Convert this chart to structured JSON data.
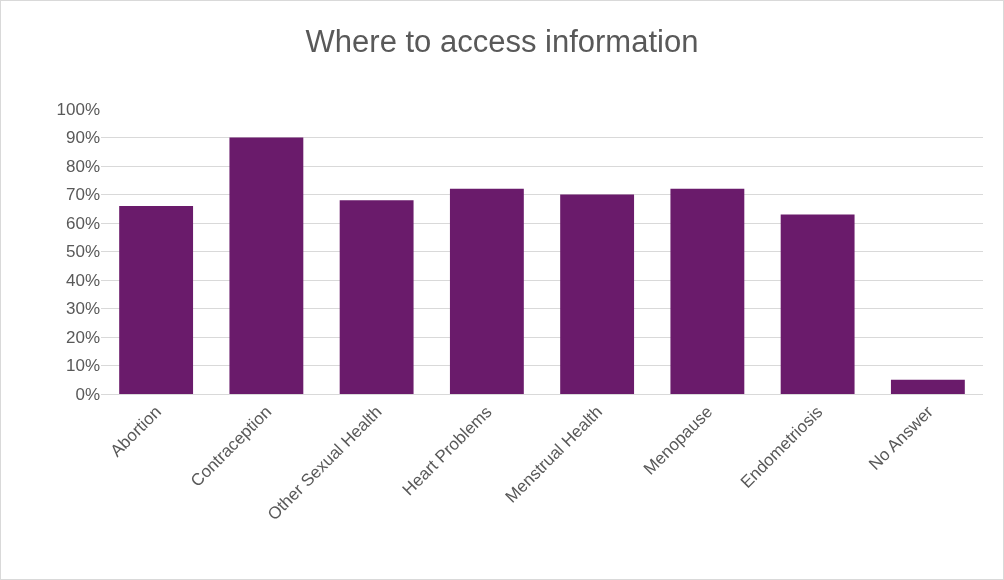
{
  "chart_data": {
    "type": "bar",
    "title": "Where to access information",
    "categories": [
      "Abortion",
      "Contraception",
      "Other Sexual Health",
      "Heart Problems",
      "Menstrual Health",
      "Menopause",
      "Endometriosis",
      "No Answer"
    ],
    "values": [
      66,
      90,
      68,
      72,
      70,
      72,
      63,
      5
    ],
    "color": "#6a1b6b",
    "ylim": [
      0,
      100
    ],
    "yticks": [
      {
        "value": 0,
        "label": "0%"
      },
      {
        "value": 10,
        "label": "10%"
      },
      {
        "value": 20,
        "label": "20%"
      },
      {
        "value": 30,
        "label": "30%"
      },
      {
        "value": 40,
        "label": "40%"
      },
      {
        "value": 50,
        "label": "50%"
      },
      {
        "value": 60,
        "label": "60%"
      },
      {
        "value": 70,
        "label": "70%"
      },
      {
        "value": 80,
        "label": "80%"
      },
      {
        "value": 90,
        "label": "90%"
      },
      {
        "value": 100,
        "label": "100%"
      }
    ],
    "grid": "y",
    "legend": false
  }
}
